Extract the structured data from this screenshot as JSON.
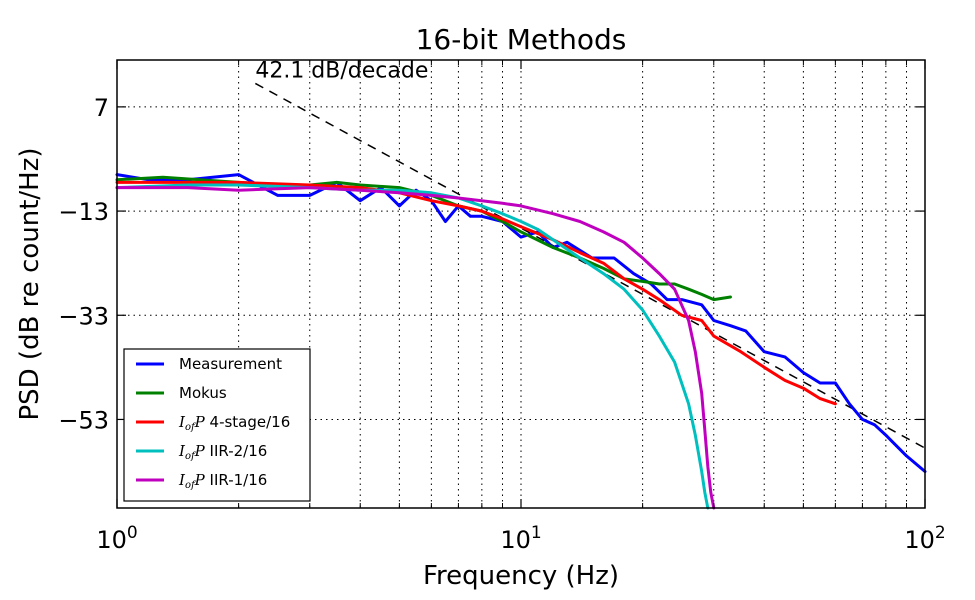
{
  "chart_data": {
    "type": "line",
    "title": "16-bit Methods",
    "xlabel": "Frequency (Hz)",
    "ylabel": "PSD (dB re count/Hz)",
    "x_scale": "log",
    "xlim": [
      1,
      100
    ],
    "ylim": [
      -70,
      16
    ],
    "x_ticks": [
      {
        "value": 1,
        "base": "10",
        "exp": "0"
      },
      {
        "value": 10,
        "base": "10",
        "exp": "1"
      },
      {
        "value": 100,
        "base": "10",
        "exp": "2"
      }
    ],
    "y_ticks": [
      {
        "value": 7,
        "label": "7"
      },
      {
        "value": -13,
        "label": "−13"
      },
      {
        "value": -33,
        "label": "−33"
      },
      {
        "value": -53,
        "label": "−53"
      }
    ],
    "grid": true,
    "legend_position": "lower-left",
    "annotation": {
      "text": "42.1 dB/decade",
      "line": {
        "x": [
          2.2,
          100
        ],
        "y": [
          11.5,
          -58.5
        ]
      }
    },
    "series": [
      {
        "name": "Measurement",
        "color": "#0000ff",
        "x": [
          1,
          1.2,
          1.5,
          2,
          2.5,
          3,
          3.5,
          4,
          4.5,
          5,
          5.5,
          6,
          6.5,
          7,
          7.5,
          8,
          9,
          10,
          11,
          12,
          13,
          15,
          17,
          19,
          21,
          23,
          25,
          28,
          30,
          33,
          36,
          40,
          45,
          50,
          55,
          60,
          65,
          70,
          75,
          80,
          90,
          100
        ],
        "y": [
          -6,
          -7,
          -7,
          -6,
          -10,
          -10,
          -7.5,
          -11,
          -8.5,
          -12,
          -9,
          -11,
          -15,
          -12,
          -14,
          -14,
          -15,
          -18,
          -17,
          -20,
          -19,
          -22,
          -22,
          -25,
          -27,
          -30,
          -30,
          -31,
          -34,
          -35,
          -36,
          -40,
          -41,
          -44,
          -46,
          -46,
          -50,
          -53,
          -54,
          -56,
          -60,
          -63
        ]
      },
      {
        "name": "Mokus",
        "color": "#008000",
        "x": [
          1,
          1.3,
          1.6,
          2,
          2.5,
          3,
          3.5,
          4,
          5,
          6,
          7,
          8,
          9,
          10,
          12,
          14,
          16,
          18,
          20,
          22,
          24,
          26,
          28,
          30,
          33
        ],
        "y": [
          -7,
          -6.5,
          -7,
          -7.5,
          -8,
          -8,
          -7.5,
          -8,
          -8.5,
          -10,
          -12,
          -13,
          -15,
          -17,
          -20,
          -22,
          -24,
          -26,
          -26.5,
          -27,
          -27,
          -28,
          -29,
          -30,
          -29.5
        ]
      },
      {
        "name": "I_{of} P 4-stage/16",
        "label_pre": "I",
        "label_sub": "of",
        "label_mid": "P",
        "label_post": " 4-stage/16",
        "color": "#ff0000",
        "x": [
          1,
          1.5,
          2,
          3,
          4,
          5,
          6,
          7,
          8,
          9,
          10,
          12,
          14,
          16,
          18,
          20,
          22,
          25,
          28,
          30,
          35,
          40,
          45,
          50,
          55,
          60
        ],
        "y": [
          -7.5,
          -7.5,
          -7.5,
          -8,
          -8.5,
          -9.5,
          -11,
          -12,
          -13,
          -14.5,
          -16,
          -18.5,
          -21,
          -23,
          -26,
          -28,
          -30,
          -33,
          -34,
          -37,
          -40,
          -43,
          -45.5,
          -47,
          -49,
          -50
        ]
      },
      {
        "name": "I_{of} P IIR-2/16",
        "label_pre": "I",
        "label_sub": "of",
        "label_mid": "P",
        "label_post": " IIR-2/16",
        "color": "#00bfbf",
        "x": [
          1,
          1.5,
          2,
          3,
          4,
          5,
          6,
          7,
          8,
          9,
          10,
          11,
          12,
          14,
          16,
          18,
          20,
          22,
          24,
          26,
          27,
          28,
          28.5,
          29
        ],
        "y": [
          -8.5,
          -8,
          -8,
          -8.5,
          -9,
          -9,
          -9.5,
          -10.5,
          -12,
          -13.5,
          -15,
          -16.5,
          -18.5,
          -22,
          -25,
          -28,
          -32,
          -37,
          -42,
          -50,
          -56,
          -63,
          -67,
          -70
        ]
      },
      {
        "name": "I_{of} P IIR-1/16",
        "label_pre": "I",
        "label_sub": "of",
        "label_mid": "P",
        "label_post": " IIR-1/16",
        "color": "#bf00bf",
        "x": [
          1,
          1.5,
          2,
          3,
          4,
          5,
          6,
          7,
          8,
          9,
          10,
          12,
          14,
          16,
          18,
          20,
          22,
          24,
          26,
          27,
          28,
          28.5,
          29,
          29.5,
          30
        ],
        "y": [
          -8.5,
          -8.5,
          -9,
          -8.5,
          -9,
          -9.5,
          -10,
          -10.5,
          -11,
          -11.5,
          -12,
          -13.5,
          -15,
          -17,
          -19,
          -22,
          -25,
          -28,
          -34,
          -40,
          -48,
          -55,
          -62,
          -67,
          -70
        ]
      }
    ]
  }
}
